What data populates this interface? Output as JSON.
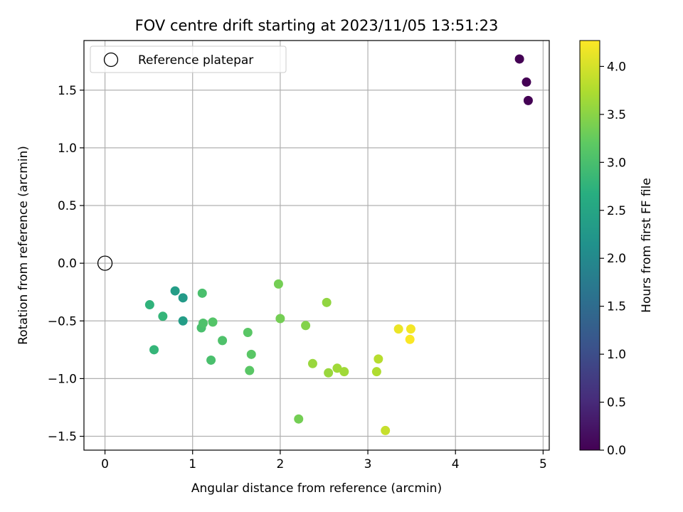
{
  "chart_data": {
    "type": "scatter",
    "title": "FOV centre drift starting at 2023/11/05 13:51:23",
    "xlabel": "Angular distance from reference (arcmin)",
    "ylabel": "Rotation from reference (arcmin)",
    "xlim": [
      -0.24,
      5.07
    ],
    "ylim": [
      -1.62,
      1.93
    ],
    "xticks": [
      "0",
      "1",
      "2",
      "3",
      "4",
      "5"
    ],
    "yticks": [
      "−1.5",
      "−1.0",
      "−0.5",
      "0.0",
      "0.5",
      "1.0",
      "1.5"
    ],
    "grid": true,
    "legend": {
      "position": "top-left",
      "entries": [
        "Reference platepar"
      ]
    },
    "reference_point": {
      "x": 0,
      "y": 0
    },
    "colorbar": {
      "label": "Hours from first FF file",
      "range": [
        0,
        4.27
      ],
      "ticks": [
        "0.0",
        "0.5",
        "1.0",
        "1.5",
        "2.0",
        "2.5",
        "3.0",
        "3.5",
        "4.0"
      ],
      "colormap": "viridis"
    },
    "points": [
      {
        "x": 4.73,
        "y": 1.77,
        "c": 0.0
      },
      {
        "x": 4.81,
        "y": 1.57,
        "c": 0.0
      },
      {
        "x": 4.83,
        "y": 1.41,
        "c": 0.0
      },
      {
        "x": 0.8,
        "y": -0.24,
        "c": 2.35
      },
      {
        "x": 0.89,
        "y": -0.3,
        "c": 2.3
      },
      {
        "x": 0.89,
        "y": -0.5,
        "c": 2.35
      },
      {
        "x": 0.51,
        "y": -0.36,
        "c": 2.75
      },
      {
        "x": 0.66,
        "y": -0.46,
        "c": 2.8
      },
      {
        "x": 0.56,
        "y": -0.75,
        "c": 2.8
      },
      {
        "x": 1.11,
        "y": -0.26,
        "c": 3.0
      },
      {
        "x": 1.1,
        "y": -0.56,
        "c": 3.0
      },
      {
        "x": 1.12,
        "y": -0.52,
        "c": 3.05
      },
      {
        "x": 1.23,
        "y": -0.51,
        "c": 3.1
      },
      {
        "x": 1.21,
        "y": -0.84,
        "c": 3.0
      },
      {
        "x": 1.34,
        "y": -0.67,
        "c": 3.05
      },
      {
        "x": 1.63,
        "y": -0.6,
        "c": 3.15
      },
      {
        "x": 1.67,
        "y": -0.79,
        "c": 3.15
      },
      {
        "x": 1.65,
        "y": -0.93,
        "c": 3.15
      },
      {
        "x": 1.98,
        "y": -0.18,
        "c": 3.35
      },
      {
        "x": 2.0,
        "y": -0.48,
        "c": 3.35
      },
      {
        "x": 2.29,
        "y": -0.54,
        "c": 3.45
      },
      {
        "x": 2.21,
        "y": -1.35,
        "c": 3.35
      },
      {
        "x": 2.53,
        "y": -0.34,
        "c": 3.55
      },
      {
        "x": 2.37,
        "y": -0.87,
        "c": 3.6
      },
      {
        "x": 2.55,
        "y": -0.95,
        "c": 3.6
      },
      {
        "x": 2.65,
        "y": -0.91,
        "c": 3.65
      },
      {
        "x": 2.73,
        "y": -0.94,
        "c": 3.65
      },
      {
        "x": 3.1,
        "y": -0.94,
        "c": 3.75
      },
      {
        "x": 3.12,
        "y": -0.83,
        "c": 3.8
      },
      {
        "x": 3.2,
        "y": -1.45,
        "c": 3.9
      },
      {
        "x": 3.35,
        "y": -0.57,
        "c": 4.15
      },
      {
        "x": 3.49,
        "y": -0.57,
        "c": 4.2
      },
      {
        "x": 3.48,
        "y": -0.66,
        "c": 4.25
      }
    ]
  }
}
